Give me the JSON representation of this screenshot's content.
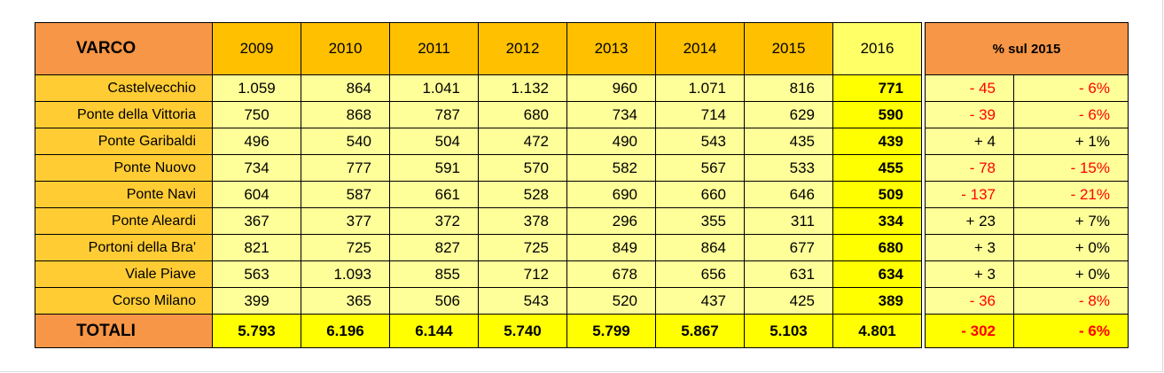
{
  "header": {
    "varco": "VARCO",
    "years": [
      "2009",
      "2010",
      "2011",
      "2012",
      "2013",
      "2014",
      "2015",
      "2016"
    ],
    "pct": "% sul 2015"
  },
  "rows": [
    {
      "name": "Castelvecchio",
      "values": [
        "1.059",
        "864",
        "1.041",
        "1.132",
        "960",
        "1.071",
        "816",
        "771"
      ],
      "diff": "- 45",
      "pct": "- 6%"
    },
    {
      "name": "Ponte della Vittoria",
      "values": [
        "750",
        "868",
        "787",
        "680",
        "734",
        "714",
        "629",
        "590"
      ],
      "diff": "- 39",
      "pct": "- 6%"
    },
    {
      "name": "Ponte Garibaldi",
      "values": [
        "496",
        "540",
        "504",
        "472",
        "490",
        "543",
        "435",
        "439"
      ],
      "diff": "+ 4",
      "pct": "+ 1%"
    },
    {
      "name": "Ponte Nuovo",
      "values": [
        "734",
        "777",
        "591",
        "570",
        "582",
        "567",
        "533",
        "455"
      ],
      "diff": "- 78",
      "pct": "- 15%"
    },
    {
      "name": "Ponte Navi",
      "values": [
        "604",
        "587",
        "661",
        "528",
        "690",
        "660",
        "646",
        "509"
      ],
      "diff": "- 137",
      "pct": "- 21%"
    },
    {
      "name": "Ponte Aleardi",
      "values": [
        "367",
        "377",
        "372",
        "378",
        "296",
        "355",
        "311",
        "334"
      ],
      "diff": "+ 23",
      "pct": "+ 7%"
    },
    {
      "name": "Portoni della Bra'",
      "values": [
        "821",
        "725",
        "827",
        "725",
        "849",
        "864",
        "677",
        "680"
      ],
      "diff": "+ 3",
      "pct": "+ 0%"
    },
    {
      "name": "Viale Piave",
      "values": [
        "563",
        "1.093",
        "855",
        "712",
        "678",
        "656",
        "631",
        "634"
      ],
      "diff": "+ 3",
      "pct": "+ 0%"
    },
    {
      "name": "Corso Milano",
      "values": [
        "399",
        "365",
        "506",
        "543",
        "520",
        "437",
        "425",
        "389"
      ],
      "diff": "- 36",
      "pct": "- 8%"
    }
  ],
  "totals": {
    "label": "TOTALI",
    "values": [
      "5.793",
      "6.196",
      "6.144",
      "5.740",
      "5.799",
      "5.867",
      "5.103",
      "4.801"
    ],
    "diff": "- 302",
    "pct": "- 6%"
  },
  "colors": {
    "header_orange": "#f79646",
    "header_gold": "#ffc000",
    "label_gold": "#ffcc33",
    "cell_light_yellow": "#ffff99",
    "highlight_yellow": "#ffff00",
    "negative_red": "#ff0000"
  }
}
